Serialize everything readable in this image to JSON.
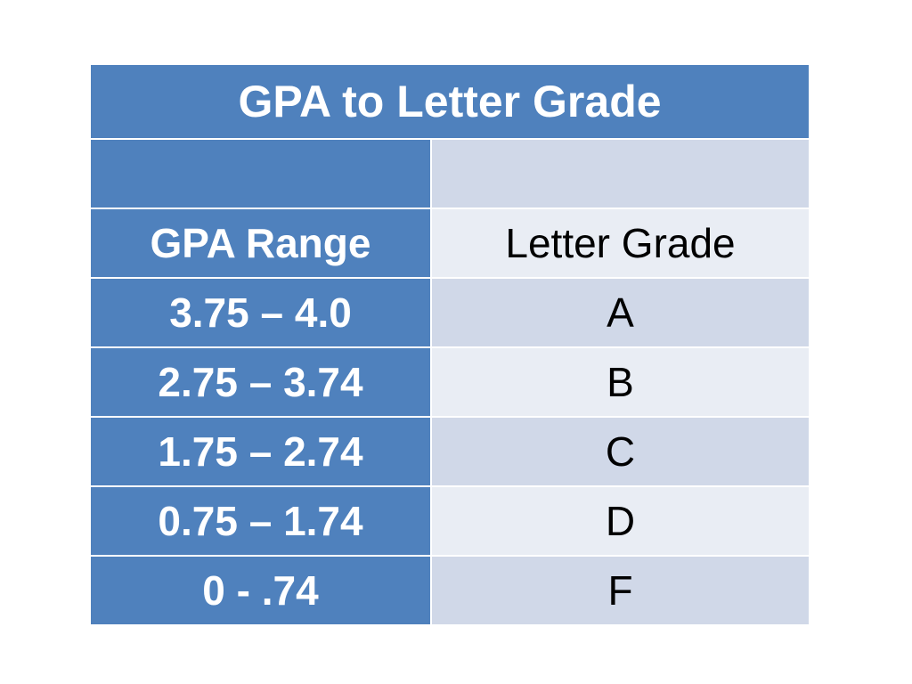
{
  "table": {
    "title": "GPA to Letter Grade",
    "blank_row": [
      "",
      ""
    ],
    "header": {
      "gpa": "GPA Range",
      "letter": "Letter Grade"
    },
    "rows": [
      {
        "gpa": "3.75 – 4.0",
        "letter": "A"
      },
      {
        "gpa": "2.75 – 3.74",
        "letter": "B"
      },
      {
        "gpa": "1.75 – 2.74",
        "letter": "C"
      },
      {
        "gpa": "0.75 – 1.74",
        "letter": "D"
      },
      {
        "gpa": "0 - .74",
        "letter": "F"
      }
    ]
  },
  "colors": {
    "header_blue": "#4f81bd",
    "row_dark": "#d0d8e8",
    "row_light": "#e9edf4"
  }
}
